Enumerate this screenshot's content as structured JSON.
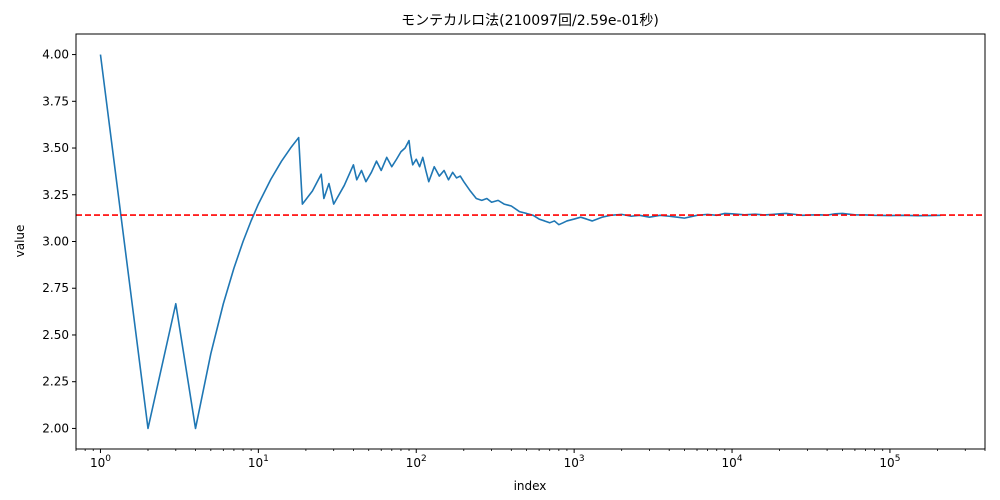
{
  "chart_data": {
    "type": "line",
    "title": "モンテカルロ法(210097回/2.59e-01秒)",
    "xlabel": "index",
    "ylabel": "value",
    "xscale": "log",
    "xlim": [
      0.7,
      400000
    ],
    "ylim": [
      1.89,
      4.11
    ],
    "grid": false,
    "x_major_ticks": [
      {
        "value": 1,
        "base": "10",
        "exp": "0"
      },
      {
        "value": 10,
        "base": "10",
        "exp": "1"
      },
      {
        "value": 100,
        "base": "10",
        "exp": "2"
      },
      {
        "value": 1000,
        "base": "10",
        "exp": "3"
      },
      {
        "value": 10000,
        "base": "10",
        "exp": "4"
      },
      {
        "value": 100000,
        "base": "10",
        "exp": "5"
      }
    ],
    "y_ticks": [
      {
        "value": 2.0,
        "label": "2.00"
      },
      {
        "value": 2.25,
        "label": "2.25"
      },
      {
        "value": 2.5,
        "label": "2.50"
      },
      {
        "value": 2.75,
        "label": "2.75"
      },
      {
        "value": 3.0,
        "label": "3.00"
      },
      {
        "value": 3.25,
        "label": "3.25"
      },
      {
        "value": 3.5,
        "label": "3.50"
      },
      {
        "value": 3.75,
        "label": "3.75"
      },
      {
        "value": 4.0,
        "label": "4.00"
      }
    ],
    "series": [
      {
        "color": "#1f77b4",
        "x": [
          1,
          2,
          3,
          4,
          5,
          6,
          7,
          8,
          9,
          10,
          12,
          14,
          16,
          18,
          19,
          22,
          25,
          26,
          28,
          30,
          35,
          40,
          42,
          45,
          48,
          52,
          56,
          60,
          65,
          70,
          75,
          80,
          85,
          90,
          92,
          95,
          100,
          105,
          110,
          115,
          120,
          125,
          130,
          140,
          150,
          160,
          170,
          180,
          190,
          200,
          220,
          240,
          260,
          280,
          300,
          330,
          360,
          400,
          450,
          500,
          550,
          600,
          650,
          700,
          750,
          800,
          850,
          900,
          1000,
          1100,
          1200,
          1300,
          1500,
          1700,
          2000,
          2300,
          2600,
          3000,
          3500,
          4000,
          4500,
          5000,
          6000,
          7000,
          8000,
          9000,
          10000,
          12000,
          14000,
          16000,
          18000,
          20000,
          22000,
          25000,
          28000,
          32000,
          36000,
          40000,
          45000,
          50000,
          55000,
          60000,
          70000,
          80000,
          100000,
          120000,
          150000,
          180000,
          210097
        ],
        "y": [
          4.0,
          2.0,
          2.667,
          2.0,
          2.4,
          2.667,
          2.857,
          3.0,
          3.111,
          3.2,
          3.333,
          3.429,
          3.5,
          3.556,
          3.2,
          3.27,
          3.36,
          3.23,
          3.31,
          3.2,
          3.3,
          3.41,
          3.33,
          3.38,
          3.32,
          3.37,
          3.43,
          3.38,
          3.45,
          3.4,
          3.44,
          3.48,
          3.5,
          3.54,
          3.47,
          3.41,
          3.44,
          3.4,
          3.45,
          3.38,
          3.32,
          3.36,
          3.4,
          3.35,
          3.38,
          3.33,
          3.37,
          3.34,
          3.35,
          3.32,
          3.27,
          3.23,
          3.22,
          3.23,
          3.21,
          3.22,
          3.2,
          3.19,
          3.16,
          3.15,
          3.14,
          3.12,
          3.11,
          3.1,
          3.11,
          3.09,
          3.1,
          3.11,
          3.12,
          3.13,
          3.12,
          3.11,
          3.13,
          3.14,
          3.145,
          3.135,
          3.14,
          3.13,
          3.14,
          3.135,
          3.13,
          3.125,
          3.14,
          3.145,
          3.14,
          3.15,
          3.148,
          3.143,
          3.146,
          3.142,
          3.145,
          3.148,
          3.15,
          3.145,
          3.14,
          3.142,
          3.143,
          3.141,
          3.148,
          3.15,
          3.146,
          3.143,
          3.142,
          3.14,
          3.139,
          3.14,
          3.138,
          3.139,
          3.14
        ]
      }
    ],
    "reference_line": {
      "y": 3.14159,
      "color": "#ff0000",
      "style": "dashed"
    }
  }
}
